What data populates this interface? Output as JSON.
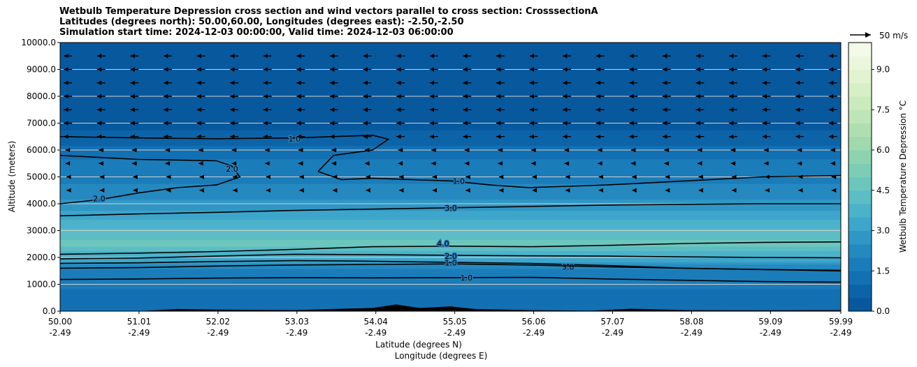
{
  "title": {
    "line1": "Wetbulb Temperature Depression cross section and wind vectors parallel to cross section: CrosssectionA",
    "line2": "Latitudes (degrees north): 50.00,60.00, Longitudes (degrees east): -2.50,-2.50",
    "line3": "Simulation start time: 2024-12-03 00:00:00, Valid time: 2024-12-03 06:00:00"
  },
  "chart_data": {
    "type": "heatmap",
    "xlabel": "Latitude (degrees N)",
    "xlabel2": "Longitude (degrees E)",
    "ylabel": "Altitude (meters)",
    "xlim": [
      50.0,
      59.99
    ],
    "ylim": [
      0,
      10000
    ],
    "x_ticks": [
      {
        "value": 50.0,
        "lat": "50.00",
        "lon": "-2.49"
      },
      {
        "value": 51.01,
        "lat": "51.01",
        "lon": "-2.49"
      },
      {
        "value": 52.02,
        "lat": "52.02",
        "lon": "-2.49"
      },
      {
        "value": 53.03,
        "lat": "53.03",
        "lon": "-2.49"
      },
      {
        "value": 54.04,
        "lat": "54.04",
        "lon": "-2.49"
      },
      {
        "value": 55.05,
        "lat": "55.05",
        "lon": "-2.49"
      },
      {
        "value": 56.06,
        "lat": "56.06",
        "lon": "-2.49"
      },
      {
        "value": 57.07,
        "lat": "57.07",
        "lon": "-2.49"
      },
      {
        "value": 58.08,
        "lat": "58.08",
        "lon": "-2.49"
      },
      {
        "value": 59.09,
        "lat": "59.09",
        "lon": "-2.49"
      },
      {
        "value": 59.99,
        "lat": "59.99",
        "lon": "-2.49"
      }
    ],
    "y_ticks": [
      {
        "value": 0,
        "label": "0.0"
      },
      {
        "value": 1000,
        "label": "1000.0"
      },
      {
        "value": 2000,
        "label": "2000.0"
      },
      {
        "value": 3000,
        "label": "3000.0"
      },
      {
        "value": 4000,
        "label": "4000.0"
      },
      {
        "value": 5000,
        "label": "5000.0"
      },
      {
        "value": 6000,
        "label": "6000.0"
      },
      {
        "value": 7000,
        "label": "7000.0"
      },
      {
        "value": 8000,
        "label": "8000.0"
      },
      {
        "value": 9000,
        "label": "9000.0"
      },
      {
        "value": 10000,
        "label": "10000.0"
      }
    ],
    "grid": "horizontal",
    "colorbar": {
      "label": "Wetbulb Temperature Depression °C",
      "min": 0,
      "max": 10,
      "step": 0.5,
      "ticks": [
        {
          "value": 0,
          "label": "0.0"
        },
        {
          "value": 1.5,
          "label": "1.5"
        },
        {
          "value": 3.0,
          "label": "3.0"
        },
        {
          "value": 4.5,
          "label": "4.5"
        },
        {
          "value": 6.0,
          "label": "6.0"
        },
        {
          "value": 7.5,
          "label": "7.5"
        },
        {
          "value": 9.0,
          "label": "9.0"
        }
      ],
      "colors": [
        "#08589e",
        "#0c63a8",
        "#1370b2",
        "#1b7cba",
        "#2589c0",
        "#3097c5",
        "#3ea5cb",
        "#4cb2c9",
        "#5cbdc4",
        "#6cc6bd",
        "#7dcdb6",
        "#8ed3b1",
        "#9fd9ad",
        "#afdfb1",
        "#bee5b7",
        "#cbeabe",
        "#d7efc7",
        "#e2f3d1",
        "#ebf7dc",
        "#f3fae8"
      ]
    },
    "depression_profile": [
      {
        "alt": 0,
        "value": 1.4
      },
      {
        "alt": 500,
        "value": 1.2
      },
      {
        "alt": 1000,
        "value": 1.6
      },
      {
        "alt": 1500,
        "value": 1.5
      },
      {
        "alt": 2000,
        "value": 3.5
      },
      {
        "alt": 2500,
        "value": 4.6
      },
      {
        "alt": 3000,
        "value": 4.2
      },
      {
        "alt": 3500,
        "value": 3.3
      },
      {
        "alt": 4000,
        "value": 2.6
      },
      {
        "alt": 4500,
        "value": 2.2
      },
      {
        "alt": 5000,
        "value": 1.8
      },
      {
        "alt": 5500,
        "value": 1.6
      },
      {
        "alt": 6000,
        "value": 1.2
      },
      {
        "alt": 6500,
        "value": 0.6
      },
      {
        "alt": 7000,
        "value": 0.4
      },
      {
        "alt": 8000,
        "value": 0.3
      },
      {
        "alt": 9000,
        "value": 0.2
      },
      {
        "alt": 10000,
        "value": 0.2
      }
    ],
    "contours": [
      {
        "level": "4.0",
        "label_at": [
          54.9,
          2520
        ],
        "points": [
          [
            50.0,
            2120
          ],
          [
            51.0,
            2160
          ],
          [
            52.0,
            2220
          ],
          [
            53.0,
            2300
          ],
          [
            54.0,
            2400
          ],
          [
            55.0,
            2420
          ],
          [
            56.0,
            2400
          ],
          [
            57.0,
            2450
          ],
          [
            58.0,
            2520
          ],
          [
            59.0,
            2560
          ],
          [
            59.99,
            2580
          ]
        ]
      },
      {
        "level": "3.0",
        "label_at": [
          55.0,
          3850
        ],
        "points": [
          [
            50.0,
            3550
          ],
          [
            51.0,
            3620
          ],
          [
            52.0,
            3680
          ],
          [
            53.0,
            3750
          ],
          [
            54.0,
            3800
          ],
          [
            55.0,
            3850
          ],
          [
            56.0,
            3900
          ],
          [
            57.0,
            3950
          ],
          [
            58.0,
            3980
          ],
          [
            59.0,
            4000
          ],
          [
            59.99,
            4000
          ]
        ]
      },
      {
        "level": "3.0",
        "label_at": [
          56.5,
          1650
        ],
        "points": [
          [
            50.0,
            1780
          ],
          [
            51.0,
            1800
          ],
          [
            52.0,
            1850
          ],
          [
            53.0,
            1880
          ],
          [
            54.0,
            1860
          ],
          [
            55.0,
            1820
          ],
          [
            56.0,
            1780
          ],
          [
            57.0,
            1700
          ],
          [
            58.0,
            1600
          ],
          [
            59.0,
            1550
          ],
          [
            59.99,
            1520
          ]
        ]
      },
      {
        "level": "2.0",
        "label_at": [
          55.0,
          2050
        ],
        "points": [
          [
            50.0,
            1950
          ],
          [
            51.0,
            1980
          ],
          [
            52.0,
            2050
          ],
          [
            53.0,
            2120
          ],
          [
            54.0,
            2100
          ],
          [
            55.0,
            2080
          ],
          [
            56.0,
            2060
          ],
          [
            57.0,
            2050
          ],
          [
            58.0,
            2020
          ],
          [
            59.0,
            2000
          ],
          [
            59.99,
            1990
          ]
        ]
      },
      {
        "level": "1.0",
        "label_at": [
          55.0,
          1800
        ],
        "points": [
          [
            50.0,
            1600
          ],
          [
            51.0,
            1620
          ],
          [
            52.0,
            1680
          ],
          [
            53.0,
            1720
          ],
          [
            54.0,
            1740
          ],
          [
            55.0,
            1760
          ],
          [
            56.0,
            1720
          ],
          [
            57.0,
            1650
          ],
          [
            58.0,
            1600
          ],
          [
            59.0,
            1550
          ],
          [
            59.99,
            1500
          ]
        ]
      },
      {
        "level": "1.0",
        "label_at": [
          55.2,
          1250
        ],
        "points": [
          [
            50.0,
            1180
          ],
          [
            51.0,
            1200
          ],
          [
            52.0,
            1230
          ],
          [
            53.0,
            1250
          ],
          [
            54.0,
            1240
          ],
          [
            55.0,
            1250
          ],
          [
            56.0,
            1260
          ],
          [
            57.0,
            1200
          ],
          [
            58.0,
            1150
          ],
          [
            59.0,
            1100
          ],
          [
            59.99,
            1080
          ]
        ]
      },
      {
        "level": "1.0",
        "label_at": [
          55.1,
          4850
        ],
        "points": [
          [
            53.3,
            5200
          ],
          [
            53.6,
            4900
          ],
          [
            54.0,
            4950
          ],
          [
            54.5,
            4900
          ],
          [
            55.0,
            4850
          ],
          [
            55.5,
            4700
          ],
          [
            56.0,
            4600
          ],
          [
            56.5,
            4650
          ],
          [
            57.0,
            4700
          ],
          [
            58.0,
            4850
          ],
          [
            59.0,
            5000
          ],
          [
            59.99,
            5050
          ]
        ]
      },
      {
        "level": "1.0",
        "label_at": [
          53.0,
          6420
        ],
        "points": [
          [
            50.0,
            6500
          ],
          [
            51.0,
            6450
          ],
          [
            52.0,
            6420
          ],
          [
            53.0,
            6450
          ],
          [
            54.0,
            6550
          ],
          [
            54.2,
            6400
          ],
          [
            54.0,
            6000
          ],
          [
            53.5,
            5800
          ],
          [
            53.3,
            5200
          ]
        ]
      },
      {
        "level": "2.0",
        "label_at": [
          50.5,
          4200
        ],
        "points": [
          [
            50.0,
            4000
          ],
          [
            50.5,
            4150
          ],
          [
            51.0,
            4400
          ],
          [
            51.5,
            4600
          ],
          [
            52.0,
            4700
          ],
          [
            52.3,
            5000
          ],
          [
            52.2,
            5400
          ]
        ]
      },
      {
        "level": "2.0",
        "label_at": [
          52.2,
          5300
        ],
        "points": [
          [
            50.0,
            5800
          ],
          [
            51.0,
            5650
          ],
          [
            52.0,
            5600
          ],
          [
            52.2,
            5400
          ]
        ]
      }
    ],
    "wind_arrow_rows": [
      9500,
      9000,
      8500,
      8000,
      7500,
      7000,
      6500,
      6000,
      5500,
      5000,
      4500
    ],
    "wind_arrow_key": "50 m/s",
    "terrain": [
      [
        50.0,
        0
      ],
      [
        51.0,
        0
      ],
      [
        51.5,
        80
      ],
      [
        52.0,
        60
      ],
      [
        53.0,
        40
      ],
      [
        53.5,
        80
      ],
      [
        54.0,
        120
      ],
      [
        54.3,
        250
      ],
      [
        54.6,
        120
      ],
      [
        55.0,
        180
      ],
      [
        55.3,
        80
      ],
      [
        56.0,
        40
      ],
      [
        56.8,
        20
      ],
      [
        57.3,
        90
      ],
      [
        58.0,
        40
      ],
      [
        59.0,
        30
      ],
      [
        59.99,
        40
      ]
    ]
  }
}
